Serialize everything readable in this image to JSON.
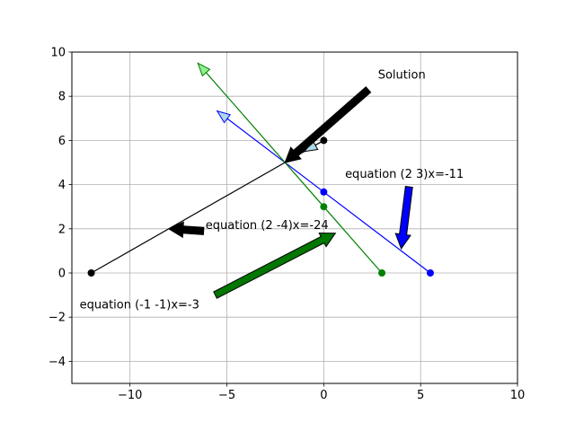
{
  "chart_data": {
    "type": "line",
    "title": "",
    "xlabel": "",
    "ylabel": "",
    "xlim": [
      -13,
      10
    ],
    "ylim": [
      -5,
      10
    ],
    "xticks": [
      -10,
      -5,
      0,
      5,
      10
    ],
    "yticks": [
      -4,
      -2,
      0,
      2,
      4,
      6,
      8,
      10
    ],
    "xtick_labels": [
      "−10",
      "−5",
      "0",
      "5",
      "10"
    ],
    "ytick_labels": [
      "−4",
      "−2",
      "0",
      "2",
      "4",
      "6",
      "8",
      "10"
    ],
    "grid": true,
    "series": [
      {
        "color": "#000000",
        "points": [
          [
            -12,
            0
          ],
          [
            0,
            6
          ]
        ],
        "vector": {
          "from": [
            0,
            6
          ],
          "to": [
            -1,
            5.5
          ],
          "fill": "#add8e6"
        }
      },
      {
        "color": "#0000ff",
        "points": [
          [
            5.5,
            0
          ],
          [
            0,
            3.667
          ]
        ],
        "vector": {
          "from": [
            0,
            3.667
          ],
          "to": [
            -5.5,
            7.333
          ],
          "fill": "#add8e6"
        }
      },
      {
        "color": "#008000",
        "points": [
          [
            3,
            0
          ],
          [
            0,
            3
          ]
        ],
        "vector": {
          "from": [
            0,
            3
          ],
          "to": [
            -6.5,
            9.5
          ],
          "fill": "#90ee90"
        }
      }
    ],
    "annotations": [
      {
        "text": "Solution",
        "text_at": [
          2.8,
          8.8
        ],
        "arrow_from": [
          2.3,
          8.3
        ],
        "arrow_to": [
          -2,
          5
        ],
        "arrow_color": "#000000"
      },
      {
        "text": "equation (2 3)x=-11",
        "text_at": [
          1.1,
          4.3
        ],
        "arrow_from": [
          4.4,
          3.9
        ],
        "arrow_to": [
          4,
          1.1
        ],
        "arrow_color": "#0000ff"
      },
      {
        "text": "equation (2 -4)x=-24",
        "text_at": [
          -6.1,
          2.0
        ],
        "arrow_from": [
          -6.2,
          1.9
        ],
        "arrow_to": [
          -8,
          2
        ],
        "arrow_color": "#000000"
      },
      {
        "text": "equation (-1 -1)x=-3",
        "text_at": [
          -12.6,
          -1.6
        ],
        "arrow_from": [
          -5.6,
          -1.0
        ],
        "arrow_to": [
          0.6,
          1.8
        ],
        "arrow_color": "#007700"
      }
    ]
  }
}
